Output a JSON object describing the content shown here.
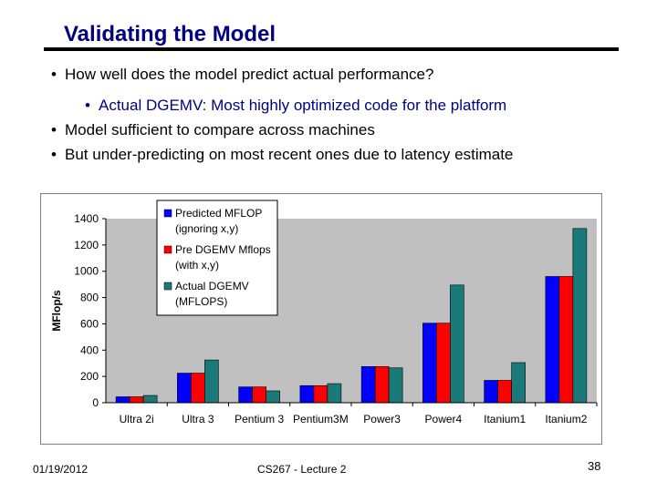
{
  "slide": {
    "title": "Validating the Model",
    "bullets": [
      "How well does the model predict actual performance?",
      "Actual DGEMV: Most highly optimized code for the platform",
      "Model sufficient to compare across machines",
      "But under-predicting on most recent ones due to latency estimate"
    ],
    "bullet_glyph": "•"
  },
  "footer": {
    "date": "01/19/2012",
    "center": "CS267 - Lecture 2",
    "page": "38"
  },
  "chart_data": {
    "type": "bar",
    "title": "",
    "xlabel": "",
    "ylabel": "MFlop/s",
    "ylim": [
      0,
      1400
    ],
    "yticks": [
      0,
      200,
      400,
      600,
      800,
      1000,
      1200,
      1400
    ],
    "categories": [
      "Ultra 2i",
      "Ultra 3",
      "Pentium 3",
      "Pentium3M",
      "Power3",
      "Power4",
      "Itanium1",
      "Itanium2"
    ],
    "series": [
      {
        "name": "Predicted MFLOP (ignoring x,y)",
        "legend_lines": [
          "Predicted MFLOP",
          "(ignoring x,y)"
        ],
        "color": "#0000ff",
        "values": [
          45,
          225,
          120,
          130,
          275,
          605,
          170,
          960
        ]
      },
      {
        "name": "Pre DGEMV Mflops (with x,y)",
        "legend_lines": [
          "Pre DGEMV Mflops",
          "(with x,y)"
        ],
        "color": "#ff0000",
        "values": [
          45,
          225,
          120,
          130,
          275,
          605,
          170,
          960
        ]
      },
      {
        "name": "Actual DGEMV (MFLOPS)",
        "legend_lines": [
          "Actual DGEMV",
          "(MFLOPS)"
        ],
        "color": "#1a7a7a",
        "values": [
          55,
          325,
          90,
          145,
          265,
          895,
          305,
          1325
        ]
      }
    ],
    "grid": false,
    "legend_position": "top-left"
  }
}
